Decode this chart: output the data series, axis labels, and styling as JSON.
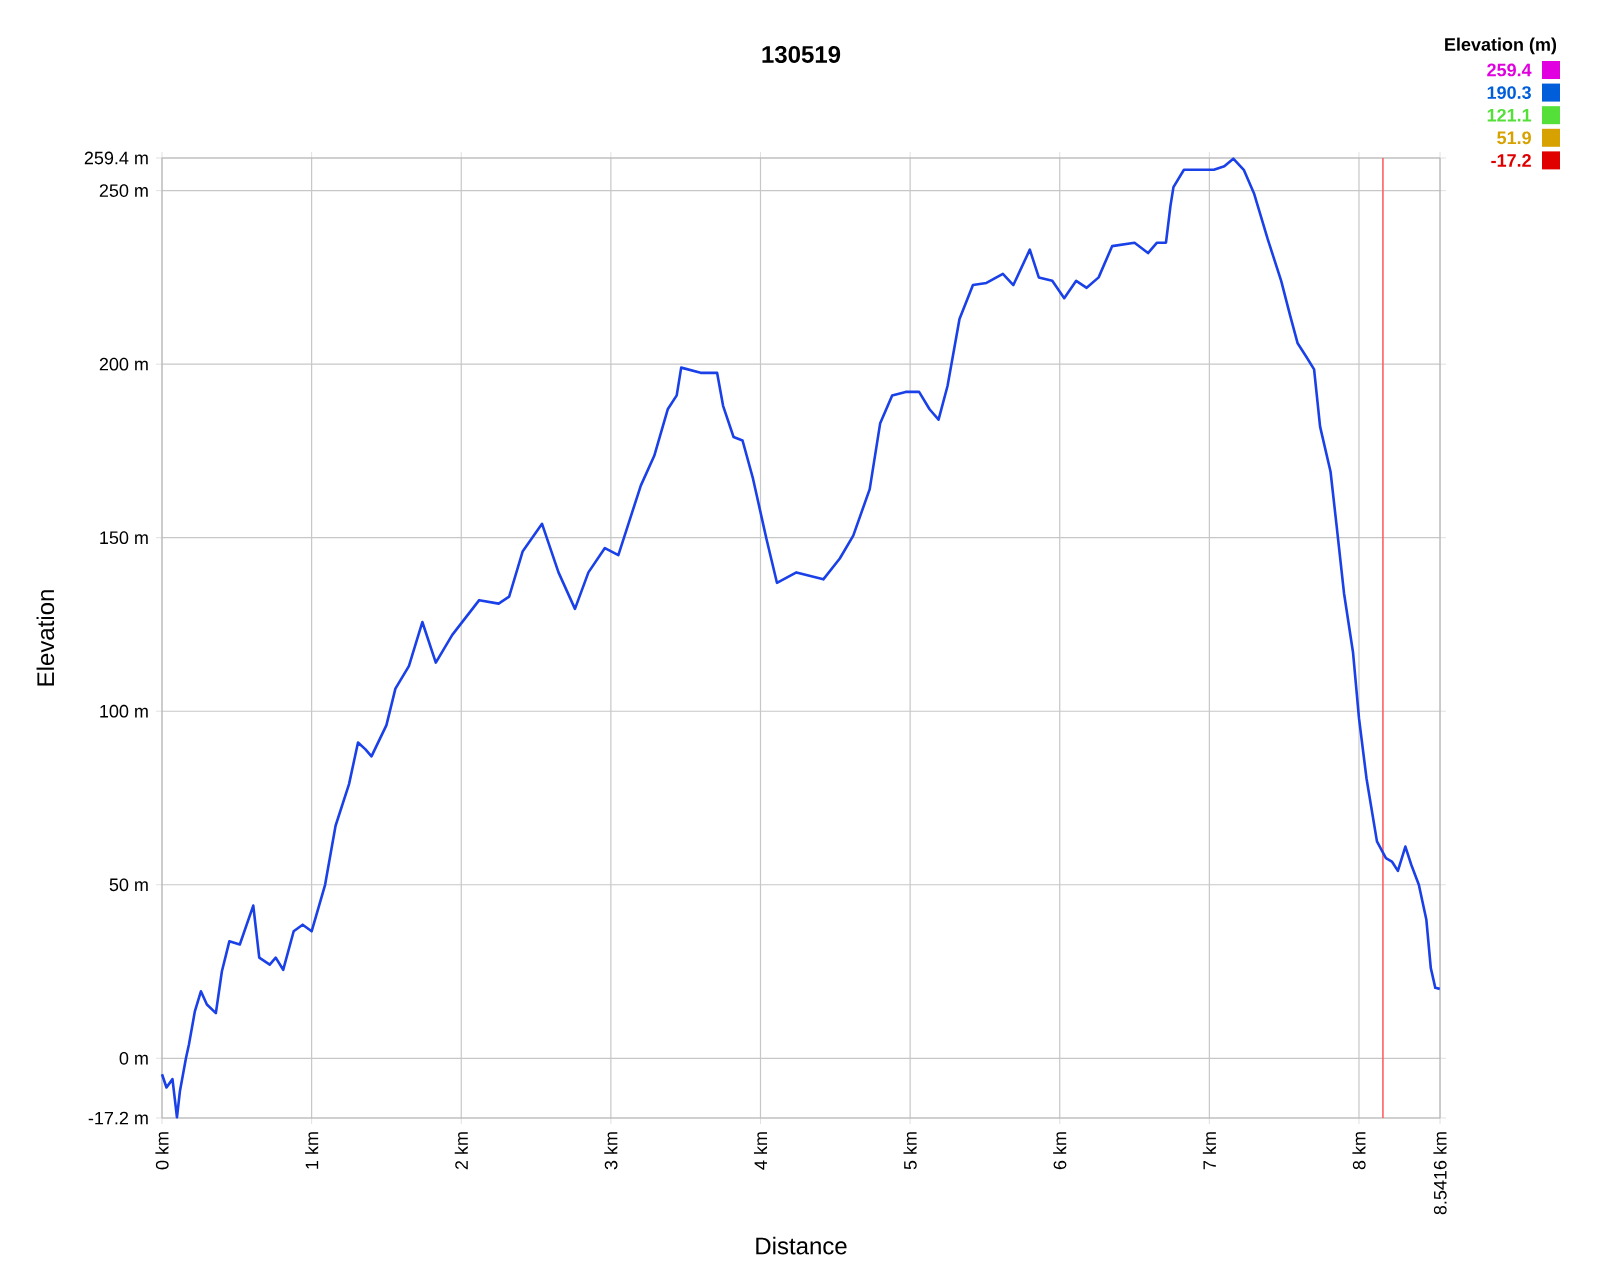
{
  "chart_data": {
    "type": "line",
    "title": "130519",
    "xlabel": "Distance",
    "ylabel": "Elevation",
    "clabel": "Elevation (m)",
    "xlim": [
      0,
      8.5416
    ],
    "ylim": [
      -17.2,
      259.4
    ],
    "xticks": [
      {
        "value": 0,
        "label": "0 km"
      },
      {
        "value": 1,
        "label": "1 km"
      },
      {
        "value": 2,
        "label": "2 km"
      },
      {
        "value": 3,
        "label": "3 km"
      },
      {
        "value": 4,
        "label": "4 km"
      },
      {
        "value": 5,
        "label": "5 km"
      },
      {
        "value": 6,
        "label": "6 km"
      },
      {
        "value": 7,
        "label": "7 km"
      },
      {
        "value": 8,
        "label": "8 km"
      },
      {
        "value": 8.5416,
        "label": "8.5416 km"
      }
    ],
    "yticks": [
      {
        "value": -17.2,
        "label": "-17.2 m"
      },
      {
        "value": 0,
        "label": "0 m"
      },
      {
        "value": 50,
        "label": "50 m"
      },
      {
        "value": 100,
        "label": "100 m"
      },
      {
        "value": 150,
        "label": "150 m"
      },
      {
        "value": 200,
        "label": "200 m"
      },
      {
        "value": 250,
        "label": "250 m"
      },
      {
        "value": 259.4,
        "label": "259.4 m"
      }
    ],
    "clim": [
      -17.2,
      259.4
    ],
    "cticks": [
      259.4,
      190.3,
      121.1,
      51.9,
      -17.2
    ],
    "color": "#1a40e8",
    "grid": true,
    "ref_lines": [
      {
        "axis": "x",
        "value": 8.16,
        "color": "#ff6060"
      }
    ],
    "x": [
      0,
      0.03,
      0.07,
      0.1,
      0.12,
      0.16,
      0.18,
      0.22,
      0.26,
      0.3,
      0.36,
      0.4,
      0.45,
      0.52,
      0.61,
      0.65,
      0.72,
      0.76,
      0.81,
      0.88,
      0.94,
      1.0,
      1.09,
      1.16,
      1.25,
      1.31,
      1.36,
      1.4,
      1.5,
      1.56,
      1.65,
      1.74,
      1.83,
      1.94,
      2.12,
      2.25,
      2.32,
      2.41,
      2.54,
      2.65,
      2.76,
      2.85,
      2.96,
      3.05,
      3.14,
      3.2,
      3.29,
      3.38,
      3.44,
      3.47,
      3.6,
      3.71,
      3.75,
      3.82,
      3.88,
      3.95,
      4.04,
      4.11,
      4.24,
      4.42,
      4.53,
      4.62,
      4.73,
      4.8,
      4.88,
      4.97,
      5.06,
      5.13,
      5.19,
      5.25,
      5.33,
      5.42,
      5.51,
      5.62,
      5.69,
      5.8,
      5.86,
      5.95,
      6.03,
      6.11,
      6.18,
      6.26,
      6.35,
      6.5,
      6.59,
      6.65,
      6.71,
      6.74,
      6.76,
      6.83,
      7.03,
      7.1,
      7.16,
      7.23,
      7.3,
      7.39,
      7.48,
      7.54,
      7.59,
      7.65,
      7.7,
      7.74,
      7.81,
      7.85,
      7.9,
      7.96,
      8.0,
      8.05,
      8.12,
      8.18,
      8.22,
      8.26,
      8.31,
      8.35,
      8.4,
      8.45,
      8.48,
      8.51,
      8.54
    ],
    "values": [
      -4.6,
      -8.4,
      -6,
      -17,
      -9.4,
      0,
      4,
      13.6,
      19.3,
      15.5,
      13,
      25,
      33.7,
      32.8,
      44,
      29,
      27,
      29,
      25.5,
      36.6,
      38.5,
      36.6,
      50,
      67,
      79,
      91,
      89,
      87,
      96,
      106.5,
      113,
      125.7,
      114,
      122,
      132,
      131,
      133,
      146,
      154,
      140,
      129.5,
      140,
      147,
      145,
      157,
      165,
      173.6,
      187,
      191,
      199,
      197.5,
      197.5,
      188,
      179,
      178,
      167,
      149.6,
      137,
      140,
      138,
      144,
      150.6,
      164,
      183,
      191,
      192,
      192,
      187,
      184,
      193.7,
      213,
      222.8,
      223.4,
      226,
      222.8,
      233,
      225,
      224,
      219,
      224,
      222,
      225,
      234,
      235,
      232,
      235,
      235,
      245.6,
      251,
      256,
      256,
      257,
      259.2,
      256,
      249,
      236,
      224,
      214,
      206,
      202,
      198.5,
      182,
      169,
      153.6,
      134,
      117,
      98,
      80.7,
      62.5,
      57.7,
      56.7,
      54,
      61,
      55.7,
      50,
      40,
      26,
      20.3,
      20
    ]
  }
}
